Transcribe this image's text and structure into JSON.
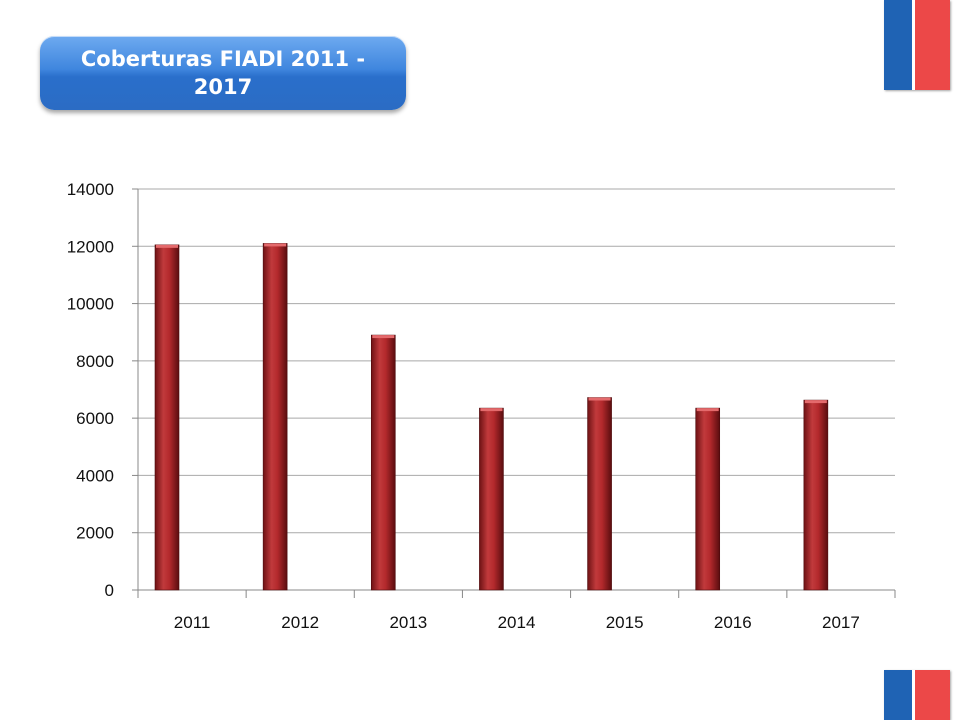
{
  "title": "Coberturas FIADI 2011 - 2017",
  "colors": {
    "flag_blue": "#1f63b4",
    "flag_red": "#ec4848",
    "bar": "#b3292c",
    "grid": "#a9a9a9"
  },
  "chart_data": {
    "type": "bar",
    "title": "",
    "xlabel": "",
    "ylabel": "",
    "categories": [
      "2011",
      "2012",
      "2013",
      "2014",
      "2015",
      "2016",
      "2017"
    ],
    "values": [
      12050,
      12100,
      8900,
      6350,
      6720,
      6350,
      6630
    ],
    "ylim": [
      0,
      14000
    ],
    "yticks": [
      0,
      2000,
      4000,
      6000,
      8000,
      10000,
      12000,
      14000
    ],
    "grid": true,
    "legend": "none"
  }
}
